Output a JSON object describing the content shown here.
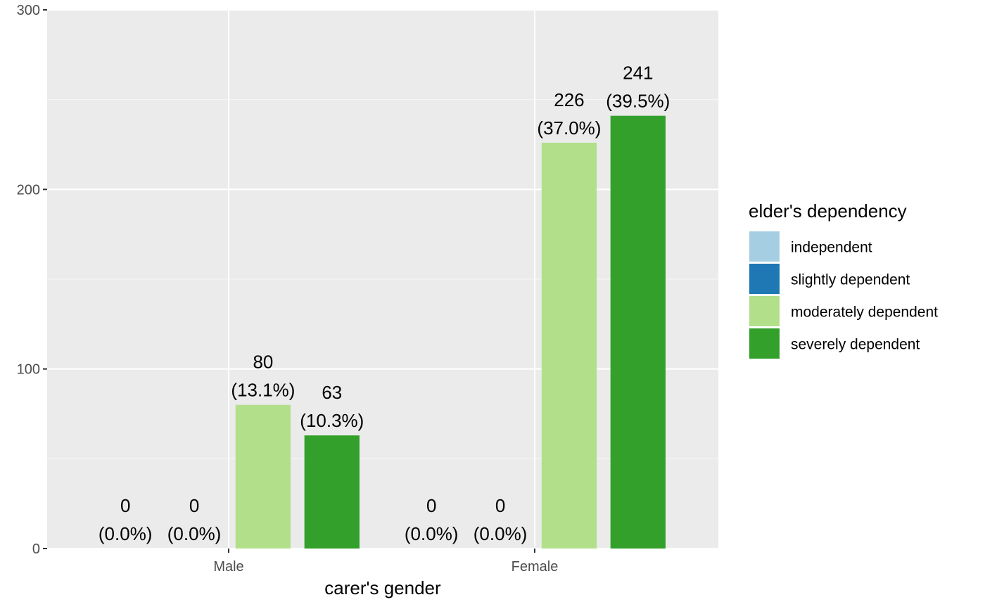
{
  "chart_data": {
    "type": "bar",
    "categories": [
      "Male",
      "Female"
    ],
    "series": [
      {
        "name": "independent",
        "color": "#a6cee3",
        "values": [
          0,
          0
        ],
        "labels": [
          "(0.0%)",
          "(0.0%)"
        ]
      },
      {
        "name": "slightly dependent",
        "color": "#1f78b4",
        "values": [
          0,
          0
        ],
        "labels": [
          "(0.0%)",
          "(0.0%)"
        ]
      },
      {
        "name": "moderately dependent",
        "color": "#b2df8a",
        "values": [
          80,
          226
        ],
        "labels": [
          "(13.1%)",
          "(37.0%)"
        ]
      },
      {
        "name": "severely dependent",
        "color": "#33a02c",
        "values": [
          63,
          241
        ],
        "labels": [
          "(10.3%)",
          "(39.5%)"
        ]
      }
    ],
    "xlabel": "carer's gender",
    "ylabel": "",
    "ylim": [
      0,
      300
    ],
    "yticks": [
      0,
      100,
      200,
      300
    ],
    "legend": {
      "title": "elder's dependency",
      "position": "right"
    },
    "grid": true
  }
}
